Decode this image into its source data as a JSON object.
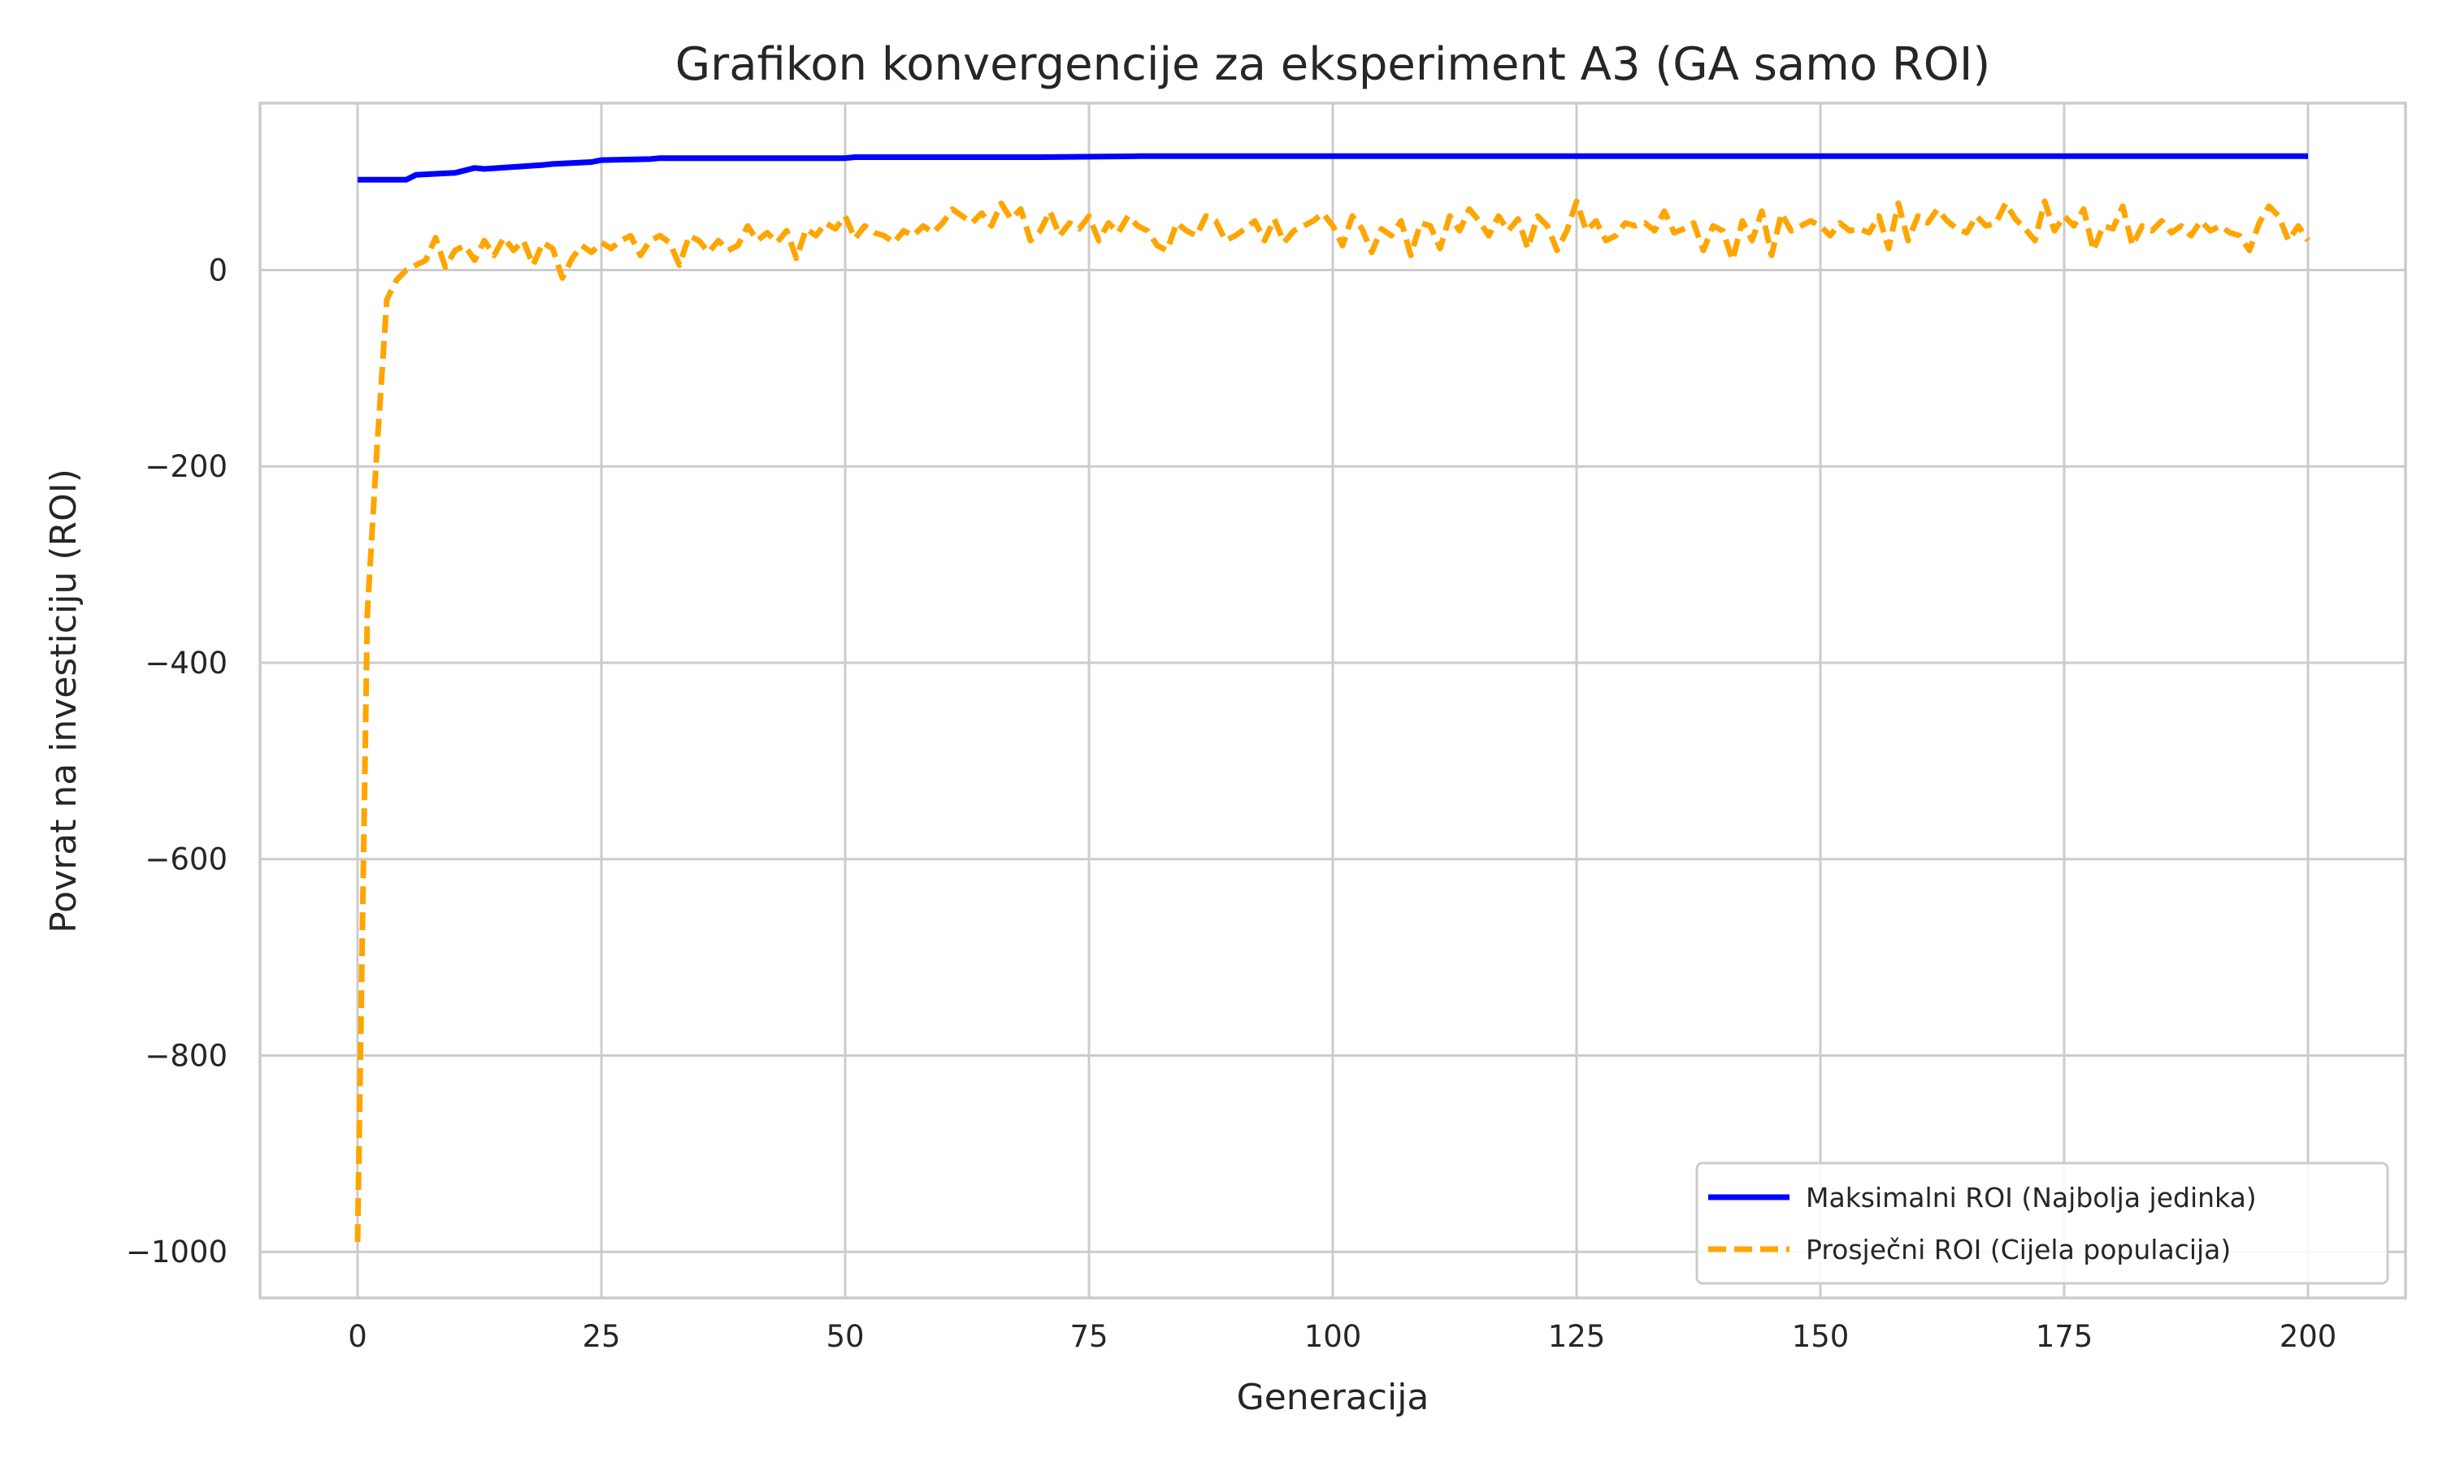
{
  "chart_data": {
    "type": "line",
    "title": "Grafikon konvergencije za eksperiment A3 (GA samo ROI)",
    "xlabel": "Generacija",
    "ylabel": "Povrat na investiciju (ROI)",
    "xlim": [
      -10,
      210
    ],
    "ylim": [
      -1047,
      170
    ],
    "xticks": [
      0,
      25,
      50,
      75,
      100,
      125,
      150,
      175,
      200
    ],
    "yticks": [
      0,
      -200,
      -400,
      -600,
      -800,
      -1000
    ],
    "ytick_labels": [
      "0",
      "−200",
      "−400",
      "−600",
      "−800",
      "−1000"
    ],
    "grid": true,
    "legend_position": "bottom-right",
    "series": [
      {
        "name": "Maksimalni ROI (Najbolja jedinka)",
        "color": "#0000ff",
        "style": "solid",
        "x": [
          0,
          5,
          6,
          10,
          12,
          13,
          19,
          20,
          24,
          25,
          30,
          31,
          50,
          51,
          70,
          80,
          200
        ],
        "y": [
          92,
          92,
          97,
          99,
          104,
          103,
          107,
          108,
          110,
          112,
          113,
          114,
          114,
          115,
          115,
          116,
          116
        ]
      },
      {
        "name": "Prosječni ROI (Cijela populacija)",
        "color": "#ffa500",
        "style": "dashed",
        "x": [
          0,
          1,
          2,
          3,
          4,
          5,
          6,
          7,
          8,
          9,
          10,
          11,
          12,
          13,
          14,
          15,
          16,
          17,
          18,
          19,
          20,
          21,
          22,
          23,
          24,
          25,
          26,
          27,
          28,
          29,
          30,
          31,
          32,
          33,
          34,
          35,
          36,
          37,
          38,
          39,
          40,
          41,
          42,
          43,
          44,
          45,
          46,
          47,
          48,
          49,
          50,
          51,
          52,
          53,
          54,
          55,
          56,
          57,
          58,
          59,
          60,
          61,
          62,
          63,
          64,
          65,
          66,
          67,
          68,
          69,
          70,
          71,
          72,
          73,
          74,
          75,
          76,
          77,
          78,
          79,
          80,
          81,
          82,
          83,
          84,
          85,
          86,
          87,
          88,
          89,
          90,
          91,
          92,
          93,
          94,
          95,
          96,
          97,
          98,
          99,
          100,
          101,
          102,
          103,
          104,
          105,
          106,
          107,
          108,
          109,
          110,
          111,
          112,
          113,
          114,
          115,
          116,
          117,
          118,
          119,
          120,
          121,
          122,
          123,
          124,
          125,
          126,
          127,
          128,
          129,
          130,
          131,
          132,
          133,
          134,
          135,
          136,
          137,
          138,
          139,
          140,
          141,
          142,
          143,
          144,
          145,
          146,
          147,
          148,
          149,
          150,
          151,
          152,
          153,
          154,
          155,
          156,
          157,
          158,
          159,
          160,
          161,
          162,
          163,
          164,
          165,
          166,
          167,
          168,
          169,
          170,
          171,
          172,
          173,
          174,
          175,
          176,
          177,
          178,
          179,
          180,
          181,
          182,
          183,
          184,
          185,
          186,
          187,
          188,
          189,
          190,
          191,
          192,
          193,
          194,
          195,
          196,
          197,
          198,
          199,
          200
        ],
        "y": [
          -990,
          -350,
          -180,
          -30,
          -10,
          0,
          5,
          10,
          33,
          3,
          20,
          25,
          10,
          30,
          15,
          33,
          20,
          30,
          5,
          28,
          22,
          -8,
          12,
          25,
          18,
          28,
          22,
          30,
          35,
          15,
          30,
          35,
          28,
          5,
          35,
          30,
          18,
          30,
          20,
          25,
          45,
          30,
          38,
          28,
          40,
          12,
          42,
          35,
          48,
          42,
          55,
          32,
          45,
          38,
          35,
          28,
          40,
          35,
          45,
          38,
          48,
          62,
          55,
          48,
          58,
          45,
          68,
          52,
          62,
          30,
          40,
          60,
          35,
          48,
          42,
          55,
          30,
          48,
          38,
          55,
          45,
          40,
          25,
          20,
          48,
          40,
          35,
          55,
          50,
          30,
          35,
          42,
          50,
          30,
          52,
          28,
          40,
          45,
          50,
          58,
          45,
          25,
          55,
          42,
          18,
          42,
          35,
          50,
          15,
          48,
          45,
          22,
          55,
          40,
          62,
          50,
          35,
          55,
          40,
          52,
          22,
          55,
          45,
          20,
          40,
          70,
          40,
          50,
          30,
          35,
          48,
          45,
          48,
          40,
          60,
          38,
          42,
          48,
          20,
          45,
          40,
          10,
          50,
          30,
          60,
          15,
          58,
          40,
          45,
          50,
          45,
          35,
          48,
          40,
          42,
          38,
          55,
          22,
          68,
          30,
          55,
          48,
          62,
          50,
          42,
          38,
          55,
          45,
          48,
          68,
          52,
          42,
          30,
          70,
          40,
          55,
          45,
          62,
          20,
          45,
          42,
          65,
          25,
          45,
          40,
          50,
          38,
          45,
          35,
          50,
          40,
          45,
          38,
          35,
          20,
          48,
          65,
          55,
          30,
          45,
          30
        ]
      }
    ]
  }
}
